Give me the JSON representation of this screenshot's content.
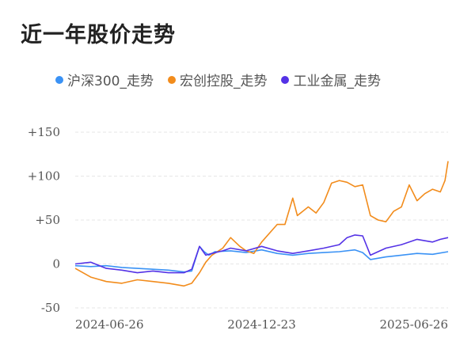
{
  "chart_data": {
    "type": "line",
    "title": "近一年股价走势",
    "legend_position": "top",
    "grid": true,
    "ylim": [
      -50,
      150
    ],
    "yticks": [
      "+150",
      "+100",
      "+50",
      "0",
      "-50"
    ],
    "ytick_values": [
      150,
      100,
      50,
      0,
      -50
    ],
    "x_range": [
      0,
      24
    ],
    "xtick_labels": [
      "2024-06-26",
      "2024-12-23",
      "2025-06-26"
    ],
    "xtick_positions": [
      0,
      12,
      24
    ],
    "series": [
      {
        "name": "沪深300_走势",
        "color": "#3a92f5",
        "x": [
          0,
          1,
          2,
          3,
          4,
          5,
          6,
          7,
          7.5,
          8,
          8.3,
          8.6,
          9,
          10,
          11,
          12,
          13,
          14,
          15,
          16,
          17,
          18,
          18.5,
          19,
          20,
          21,
          22,
          23,
          24
        ],
        "y": [
          -2,
          -3,
          -2,
          -4,
          -5,
          -6,
          -7,
          -9,
          -8,
          20,
          14,
          10,
          14,
          15,
          13,
          16,
          12,
          10,
          12,
          13,
          14,
          16,
          13,
          5,
          8,
          10,
          12,
          11,
          14
        ]
      },
      {
        "name": "宏创控股_走势",
        "color": "#f28c1c",
        "x": [
          0,
          1,
          2,
          3,
          4,
          5,
          6,
          7,
          7.5,
          8,
          8.4,
          8.8,
          9.5,
          10,
          10.6,
          11,
          11.5,
          12,
          13,
          13.5,
          14,
          14.3,
          15,
          15.5,
          16,
          16.5,
          17,
          17.5,
          18,
          18.5,
          19,
          19.5,
          20,
          20.5,
          21,
          21.5,
          22,
          22.5,
          23,
          23.5,
          23.8,
          24
        ],
        "y": [
          -5,
          -15,
          -20,
          -22,
          -18,
          -20,
          -22,
          -25,
          -22,
          -10,
          2,
          10,
          18,
          30,
          20,
          15,
          12,
          25,
          45,
          45,
          75,
          55,
          65,
          58,
          70,
          92,
          95,
          93,
          88,
          90,
          55,
          50,
          48,
          60,
          65,
          90,
          72,
          80,
          85,
          82,
          95,
          117
        ]
      },
      {
        "name": "工业金属_走势",
        "color": "#5432e6",
        "x": [
          0,
          1,
          2,
          3,
          4,
          5,
          6,
          7,
          7.5,
          8,
          8.4,
          8.8,
          9.5,
          10,
          11,
          12,
          13,
          14,
          15,
          16,
          17,
          17.5,
          18,
          18.5,
          19,
          20,
          21,
          22,
          23,
          23.5,
          24
        ],
        "y": [
          0,
          2,
          -5,
          -7,
          -10,
          -8,
          -10,
          -10,
          -6,
          20,
          10,
          12,
          15,
          18,
          15,
          20,
          15,
          12,
          15,
          18,
          22,
          30,
          33,
          32,
          10,
          18,
          22,
          28,
          25,
          28,
          30
        ]
      }
    ]
  }
}
